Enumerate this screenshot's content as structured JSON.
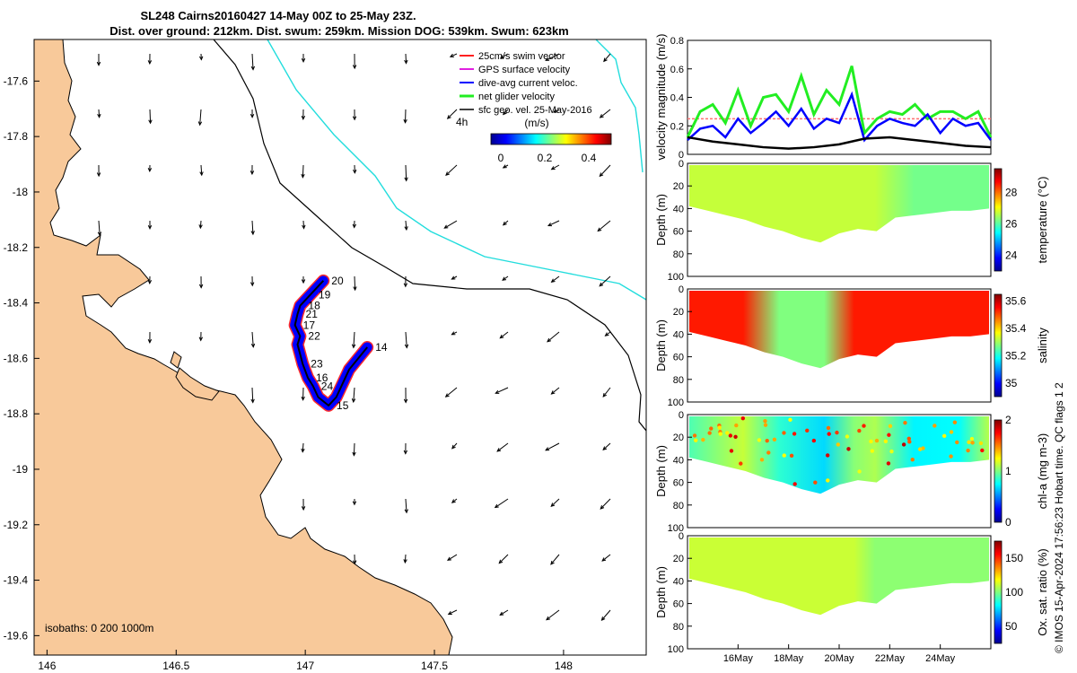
{
  "title": {
    "line1": "SL248 Cairns20160427 14-May 00Z to 25-May 23Z.",
    "line2": "Dist. over ground: 212km. Dist. swum: 259km. Mission DOG: 539km. Swum: 623km"
  },
  "colors": {
    "land": "#f8c99a",
    "coast": "#000000",
    "isobath_200": "#000000",
    "isobath_1000": "#22dddd",
    "swim": "#ff2020",
    "gps": "#e020e0",
    "dive_avg": "#0000ff",
    "net": "#22ee22",
    "sfc": "#000000",
    "track": "#000000"
  },
  "chart_data": [
    {
      "id": "map",
      "type": "scatter",
      "title": "",
      "xlabel": "",
      "ylabel": "",
      "xlim": [
        145.95,
        148.32
      ],
      "ylim": [
        -19.67,
        -17.45
      ],
      "x_ticks": [
        146,
        146.5,
        147,
        147.5,
        148
      ],
      "x_tick_labels": [
        "146",
        "146.5",
        "147",
        "147.5",
        "148"
      ],
      "y_ticks": [
        -17.6,
        -17.8,
        -18,
        -18.2,
        -18.4,
        -18.6,
        -18.8,
        -19,
        -19.2,
        -19.4,
        -19.6
      ],
      "y_tick_labels": [
        "-17.6",
        "-17.8",
        "-18",
        "-18.2",
        "-18.4",
        "-18.6",
        "-18.8",
        "-19",
        "-19.2",
        "-19.4",
        "-19.6"
      ],
      "legend": [
        {
          "label": "25cm/s swim vector",
          "color": "#ff2020"
        },
        {
          "label": "GPS surface velocity",
          "color": "#e020e0"
        },
        {
          "label": "dive-avg current veloc.",
          "color": "#0000ff"
        },
        {
          "label": "net glider velocity",
          "color": "#22ee22"
        },
        {
          "label": "sfc geo. vel. 25-May-2016",
          "color": "#000000"
        }
      ],
      "legend_placement": "top-right",
      "time_step_label": "4h",
      "colorbar": {
        "label": "(m/s)",
        "ticks": [
          "0",
          "0.2",
          "0.4"
        ],
        "range": [
          0,
          0.5
        ]
      },
      "isobaths_label": "isobaths: 0   200  1000m",
      "track": [
        {
          "lon": 147.24,
          "lat": -18.56,
          "day": "14"
        },
        {
          "lon": 147.17,
          "lat": -18.64
        },
        {
          "lon": 147.12,
          "lat": -18.74
        },
        {
          "lon": 147.09,
          "lat": -18.77,
          "day": "15"
        },
        {
          "lon": 147.05,
          "lat": -18.74
        },
        {
          "lon": 147.03,
          "lat": -18.7,
          "day": "24"
        },
        {
          "lon": 147.01,
          "lat": -18.67,
          "day": "16"
        },
        {
          "lon": 146.99,
          "lat": -18.62,
          "day": "23"
        },
        {
          "lon": 146.97,
          "lat": -18.55
        },
        {
          "lon": 146.98,
          "lat": -18.52,
          "day": "22"
        },
        {
          "lon": 146.96,
          "lat": -18.48,
          "day": "17"
        },
        {
          "lon": 146.97,
          "lat": -18.44,
          "day": "21"
        },
        {
          "lon": 146.98,
          "lat": -18.41,
          "day": "18"
        },
        {
          "lon": 147.02,
          "lat": -18.37,
          "day": "19"
        },
        {
          "lon": 147.07,
          "lat": -18.32,
          "day": "20"
        }
      ]
    },
    {
      "id": "velocity",
      "type": "line",
      "title": "",
      "xlabel": "",
      "ylabel": "velocity magnitude (m/s)",
      "xlim": [
        14.0,
        26.0
      ],
      "ylim": [
        0,
        0.8
      ],
      "y_ticks": [
        "0",
        "0.2",
        "0.4",
        "0.6",
        "0.8"
      ],
      "reference_line": 0.25,
      "series": [
        {
          "name": "net glider velocity",
          "color": "#22ee22",
          "x": [
            14.0,
            14.5,
            15.0,
            15.5,
            16.0,
            16.5,
            17.0,
            17.5,
            18.0,
            18.5,
            19.0,
            19.5,
            20.0,
            20.5,
            21.0,
            21.5,
            22.0,
            22.5,
            23.0,
            23.5,
            24.0,
            24.5,
            25.0,
            25.5,
            26.0
          ],
          "values": [
            0.12,
            0.3,
            0.35,
            0.22,
            0.45,
            0.2,
            0.4,
            0.42,
            0.3,
            0.55,
            0.28,
            0.45,
            0.35,
            0.62,
            0.15,
            0.25,
            0.3,
            0.28,
            0.35,
            0.25,
            0.3,
            0.3,
            0.25,
            0.3,
            0.12
          ]
        },
        {
          "name": "dive-avg current veloc.",
          "color": "#0000ff",
          "x": [
            14.0,
            14.5,
            15.0,
            15.5,
            16.0,
            16.5,
            17.0,
            17.5,
            18.0,
            18.5,
            19.0,
            19.5,
            20.0,
            20.5,
            21.0,
            21.5,
            22.0,
            22.5,
            23.0,
            23.5,
            24.0,
            24.5,
            25.0,
            25.5,
            26.0
          ],
          "values": [
            0.1,
            0.18,
            0.2,
            0.12,
            0.25,
            0.15,
            0.22,
            0.3,
            0.2,
            0.32,
            0.18,
            0.25,
            0.22,
            0.42,
            0.1,
            0.2,
            0.25,
            0.22,
            0.2,
            0.28,
            0.15,
            0.25,
            0.2,
            0.22,
            0.1
          ]
        },
        {
          "name": "sfc geo. vel.",
          "color": "#000000",
          "x": [
            14.0,
            15.0,
            16.0,
            17.0,
            18.0,
            19.0,
            20.0,
            21.0,
            22.0,
            23.0,
            24.0,
            25.0,
            26.0
          ],
          "values": [
            0.12,
            0.09,
            0.07,
            0.05,
            0.04,
            0.05,
            0.07,
            0.11,
            0.12,
            0.1,
            0.08,
            0.06,
            0.05
          ]
        }
      ]
    },
    {
      "id": "temperature",
      "type": "heatmap",
      "title": "",
      "xlabel": "",
      "ylabel": "Depth (m)",
      "colorbar_label": "temperature (°C)",
      "colorbar_ticks": [
        "24",
        "26",
        "28"
      ],
      "zlim": [
        23,
        29.5
      ],
      "y_ticks": [
        "0",
        "20",
        "40",
        "60",
        "80",
        "100"
      ],
      "ylim": [
        0,
        100
      ],
      "typical_value": 26.5
    },
    {
      "id": "salinity",
      "type": "heatmap",
      "title": "",
      "xlabel": "",
      "ylabel": "Depth (m)",
      "colorbar_label": "salinity",
      "colorbar_ticks": [
        "35",
        "35.2",
        "35.4",
        "35.6"
      ],
      "zlim": [
        34.9,
        35.65
      ],
      "y_ticks": [
        "0",
        "20",
        "40",
        "60",
        "80",
        "100"
      ],
      "ylim": [
        0,
        100
      ],
      "typical_value": 35.5
    },
    {
      "id": "chla",
      "type": "heatmap",
      "title": "",
      "xlabel": "",
      "ylabel": "Depth (m)",
      "colorbar_label": "chl-a (mg m-3)",
      "colorbar_ticks": [
        "0",
        "1",
        "2"
      ],
      "zlim": [
        0,
        2
      ],
      "y_ticks": [
        "0",
        "20",
        "40",
        "60",
        "80",
        "100"
      ],
      "ylim": [
        0,
        100
      ],
      "typical_value": 0.9
    },
    {
      "id": "oxygen",
      "type": "heatmap",
      "title": "",
      "xlabel": "",
      "ylabel": "Depth (m)",
      "colorbar_label": "Ox. sat. ratio (%)",
      "colorbar_ticks": [
        "50",
        "100",
        "150"
      ],
      "zlim": [
        25,
        175
      ],
      "y_ticks": [
        "0",
        "20",
        "40",
        "60",
        "80",
        "100"
      ],
      "ylim": [
        0,
        100
      ],
      "typical_value": 108,
      "x_ticks": [
        "16May",
        "18May",
        "20May",
        "22May",
        "24May"
      ]
    }
  ],
  "footer": {
    "credit": "© IMOS 15-Apr-2024 17:56:23 Hobart time. QC flags 1  2"
  }
}
